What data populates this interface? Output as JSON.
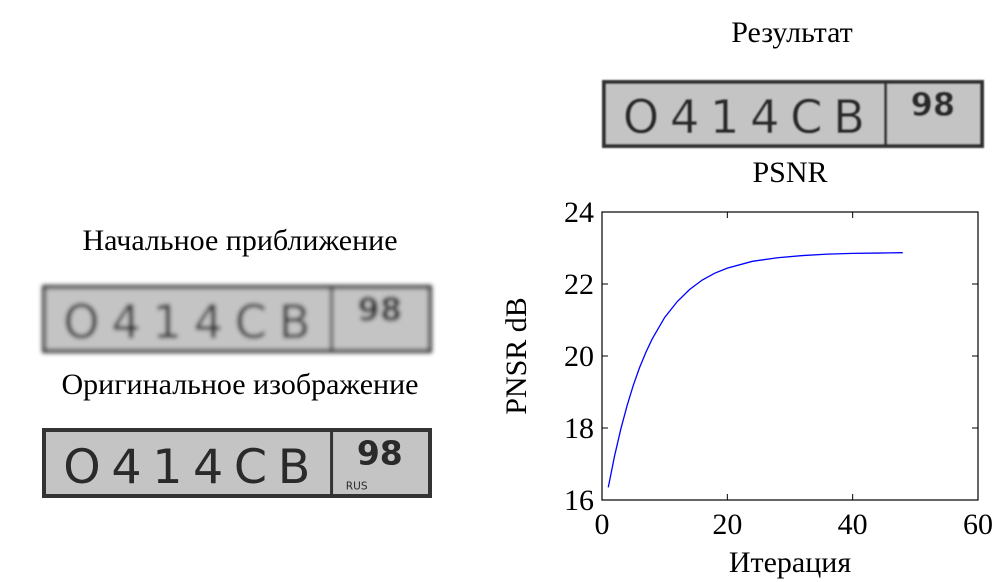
{
  "chart_data": {
    "type": "line",
    "title": "PSNR",
    "xlabel": "Итерация",
    "ylabel": "PNSR dB",
    "x": [
      1,
      2,
      3,
      4,
      5,
      6,
      7,
      8,
      10,
      12,
      14,
      16,
      18,
      20,
      24,
      28,
      32,
      36,
      40,
      44,
      48
    ],
    "values": [
      16.35,
      17.22,
      17.97,
      18.62,
      19.19,
      19.68,
      20.1,
      20.47,
      21.07,
      21.51,
      21.85,
      22.11,
      22.3,
      22.44,
      22.63,
      22.73,
      22.79,
      22.83,
      22.85,
      22.86,
      22.87
    ],
    "color": "#0000ff",
    "xlim": [
      0,
      60
    ],
    "ylim": [
      16,
      24
    ],
    "xticks": [
      0,
      20,
      40,
      60
    ],
    "yticks": [
      16,
      18,
      20,
      22,
      24
    ]
  },
  "result_title": "Результат",
  "initial_title": "Начальное приближение",
  "original_title": "Оригинальное изображение",
  "plate_text": "О414СВ",
  "plate_region": "98",
  "plate_country": "RUS"
}
